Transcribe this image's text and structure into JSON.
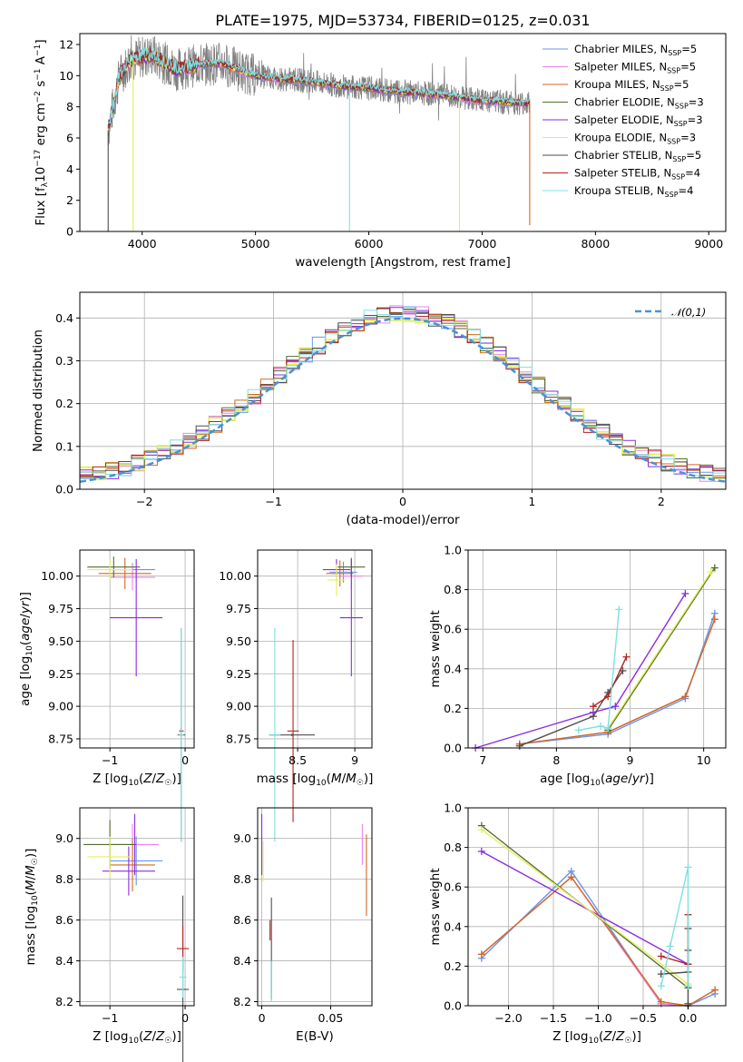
{
  "title": "PLATE=1975, MJD=53734, FIBERID=0125, z=0.031",
  "colors": {
    "chabrier_miles": "#6495ed",
    "salpeter_miles": "#ee82ee",
    "kroupa_miles": "#d2691e",
    "chabrier_elodie": "#556b2f",
    "salpeter_elodie": "#8a2be2",
    "kroupa_elodie": "#e4f05a",
    "chabrier_stelib": "#4f4f4f",
    "salpeter_stelib": "#b22222",
    "kroupa_stelib": "#7fe0e0",
    "data": "#808080",
    "normal": "#4a90d9"
  },
  "chart_data": [
    {
      "id": "spectrum",
      "type": "line",
      "xlabel": "wavelength [Angstrom, rest frame]",
      "ylabel": "Flux [f_λ 10^-17 erg cm^-2 s^-1 A^-1]",
      "xlim": [
        3450,
        9150
      ],
      "ylim": [
        0,
        12.7
      ],
      "xticks": [
        4000,
        5000,
        6000,
        7000,
        8000,
        9000
      ],
      "yticks": [
        0,
        2,
        4,
        6,
        8,
        10,
        12
      ],
      "legend": [
        "Chabrier MILES, N_SSP=5",
        "Salpeter MILES, N_SSP=5",
        "Kroupa MILES, N_SSP=5",
        "Chabrier ELODIE, N_SSP=3",
        "Salpeter ELODIE, N_SSP=3",
        "Kroupa ELODIE, N_SSP=3",
        "Chabrier STELIB, N_SSP=5",
        "Salpeter STELIB, N_SSP=4",
        "Kroupa STELIB, N_SSP=4"
      ],
      "legend_loc": "top-right",
      "continuum": {
        "x": [
          3700,
          3800,
          3900,
          4000,
          4100,
          4200,
          4300,
          4500,
          4700,
          4900,
          5000,
          5200,
          5400,
          5600,
          5800,
          6000,
          6200,
          6400,
          6600,
          6800,
          7000,
          7200,
          7420
        ],
        "y": [
          6.5,
          10.0,
          11.0,
          11.2,
          11.3,
          10.8,
          10.4,
          10.7,
          10.8,
          10.2,
          10.0,
          9.8,
          9.7,
          9.5,
          9.3,
          9.2,
          9.0,
          8.9,
          8.8,
          8.6,
          8.4,
          8.3,
          8.2
        ]
      },
      "model_dropouts": [
        3700,
        3920,
        5830,
        6800,
        7420
      ]
    },
    {
      "id": "residuals",
      "type": "step",
      "xlabel": "(data-model)/error",
      "ylabel": "Normed distribution",
      "xlim": [
        -2.5,
        2.5
      ],
      "ylim": [
        0,
        0.46
      ],
      "xticks": [
        -2,
        -1,
        0,
        1,
        2
      ],
      "yticks": [
        0.0,
        0.1,
        0.2,
        0.3,
        0.4
      ],
      "legend": [
        "𝒩(0,1)"
      ],
      "legend_loc": "top-right",
      "bin_width": 0.1
    },
    {
      "id": "age_vs_Z",
      "type": "errorbar",
      "xlabel": "Z [log10(Z/Z☉)]",
      "ylabel": "age [log10(age/yr)]",
      "xlim": [
        -1.4,
        0.12
      ],
      "ylim": [
        8.68,
        10.2
      ],
      "xticks": [
        -1,
        0
      ],
      "yticks": [
        8.75,
        9.0,
        9.25,
        9.5,
        9.75,
        10.0
      ],
      "points": [
        {
          "s": "chabrier_miles",
          "x": -0.7,
          "xe": 0.3,
          "y": 10.05,
          "ye": 0.05
        },
        {
          "s": "salpeter_miles",
          "x": -0.7,
          "xe": 0.3,
          "y": 9.99,
          "ye": 0.1
        },
        {
          "s": "kroupa_miles",
          "x": -0.8,
          "xe": 0.35,
          "y": 10.02,
          "ye": 0.12
        },
        {
          "s": "chabrier_elodie",
          "x": -0.95,
          "xe": 0.35,
          "y": 10.07,
          "ye": 0.08
        },
        {
          "s": "salpeter_elodie",
          "x": -0.65,
          "xe": 0.35,
          "y": 9.68,
          "ye": 0.45
        },
        {
          "s": "kroupa_elodie",
          "x": -1.0,
          "xe": 0.3,
          "y": 10.05,
          "ye": 0.08
        },
        {
          "s": "chabrier_stelib",
          "x": -0.05,
          "xe": 0.05,
          "y": 8.78,
          "ye": 0.82
        },
        {
          "s": "salpeter_stelib",
          "x": -0.05,
          "xe": 0.03,
          "y": 8.81,
          "ye": 0.03
        },
        {
          "s": "kroupa_stelib",
          "x": -0.05,
          "xe": 0.03,
          "y": 8.78,
          "ye": 0.82
        }
      ]
    },
    {
      "id": "age_vs_mass",
      "type": "errorbar",
      "xlabel": "mass [log10(M/M☉)]",
      "ylabel": "",
      "xlim": [
        8.15,
        9.15
      ],
      "ylim": [
        8.68,
        10.2
      ],
      "xticks": [
        8.5,
        9.0
      ],
      "yticks": [
        8.75,
        9.0,
        9.25,
        9.5,
        9.75,
        10.0
      ],
      "points": [
        {
          "s": "chabrier_miles",
          "x": 8.9,
          "xe": 0.12,
          "y": 10.03,
          "ye": 0.08
        },
        {
          "s": "salpeter_miles",
          "x": 8.97,
          "xe": 0.1,
          "y": 10.0,
          "ye": 0.1
        },
        {
          "s": "kroupa_miles",
          "x": 8.87,
          "xe": 0.12,
          "y": 10.02,
          "ye": 0.1
        },
        {
          "s": "chabrier_elodie",
          "x": 8.97,
          "xe": 0.12,
          "y": 10.07,
          "ye": 0.07
        },
        {
          "s": "salpeter_elodie",
          "x": 8.84,
          "xe": 0.12,
          "y": 10.05,
          "ye": 0.08
        },
        {
          "s": "kroupa_elodie",
          "x": 8.84,
          "xe": 0.08,
          "y": 9.97,
          "ye": 0.12
        },
        {
          "s": "salpeter_elodie",
          "x": 8.97,
          "xe": 0.1,
          "y": 9.68,
          "ye": 0.45
        },
        {
          "s": "chabrier_stelib",
          "x": 8.45,
          "xe": 0.2,
          "y": 8.78,
          "ye": 0.01
        },
        {
          "s": "salpeter_stelib",
          "x": 8.46,
          "xe": 0.05,
          "y": 8.81,
          "ye": 0.7
        },
        {
          "s": "kroupa_stelib",
          "x": 8.3,
          "xe": 0.05,
          "y": 8.78,
          "ye": 0.82
        }
      ]
    },
    {
      "id": "weight_vs_age",
      "type": "line",
      "xlabel": "age [log10(age/yr)]",
      "ylabel": "mass weight",
      "xlim": [
        6.8,
        10.3
      ],
      "ylim": [
        0,
        1.0
      ],
      "xticks": [
        7,
        8,
        9,
        10
      ],
      "yticks": [
        0.0,
        0.2,
        0.4,
        0.6,
        0.8,
        1.0
      ],
      "series": [
        {
          "s": "chabrier_miles",
          "x": [
            7.5,
            8.7,
            9.75,
            10.15
          ],
          "y": [
            0.02,
            0.07,
            0.25,
            0.68
          ]
        },
        {
          "s": "salpeter_miles",
          "x": [
            7.5,
            8.7,
            9.75,
            10.15
          ],
          "y": [
            0.02,
            0.08,
            0.26,
            0.65
          ]
        },
        {
          "s": "kroupa_miles",
          "x": [
            7.5,
            8.7,
            9.75,
            10.15
          ],
          "y": [
            0.02,
            0.08,
            0.26,
            0.65
          ]
        },
        {
          "s": "chabrier_elodie",
          "x": [
            8.7,
            10.15
          ],
          "y": [
            0.09,
            0.91
          ]
        },
        {
          "s": "salpeter_elodie",
          "x": [
            6.9,
            8.5,
            8.8,
            9.75
          ],
          "y": [
            0.0,
            0.18,
            0.21,
            0.78
          ]
        },
        {
          "s": "kroupa_elodie",
          "x": [
            8.7,
            10.1
          ],
          "y": [
            0.1,
            0.89
          ]
        },
        {
          "s": "chabrier_stelib",
          "x": [
            7.5,
            8.5,
            8.7,
            8.9
          ],
          "y": [
            0.01,
            0.16,
            0.28,
            0.39
          ]
        },
        {
          "s": "salpeter_stelib",
          "x": [
            8.5,
            8.7,
            8.95
          ],
          "y": [
            0.21,
            0.26,
            0.46
          ]
        },
        {
          "s": "kroupa_stelib",
          "x": [
            8.3,
            8.6,
            8.7,
            8.85
          ],
          "y": [
            0.09,
            0.11,
            0.1,
            0.7
          ]
        }
      ]
    },
    {
      "id": "mass_vs_Z",
      "type": "errorbar",
      "xlabel": "Z [log10(Z/Z☉)]",
      "ylabel": "mass [log10(M/M☉)]",
      "xlim": [
        -1.4,
        0.12
      ],
      "ylim": [
        8.18,
        9.15
      ],
      "xticks": [
        -1,
        0
      ],
      "yticks": [
        8.2,
        8.4,
        8.6,
        8.8,
        9.0
      ],
      "points": [
        {
          "s": "chabrier_miles",
          "x": -0.65,
          "xe": 0.35,
          "y": 8.89,
          "ye": 0.12
        },
        {
          "s": "salpeter_miles",
          "x": -0.7,
          "xe": 0.35,
          "y": 8.97,
          "ye": 0.1
        },
        {
          "s": "kroupa_miles",
          "x": -0.7,
          "xe": 0.3,
          "y": 8.87,
          "ye": 0.13
        },
        {
          "s": "chabrier_elodie",
          "x": -1.0,
          "xe": 0.35,
          "y": 8.97,
          "ye": 0.12
        },
        {
          "s": "salpeter_elodie",
          "x": -0.75,
          "xe": 0.35,
          "y": 8.84,
          "ye": 0.12
        },
        {
          "s": "kroupa_elodie",
          "x": -1.0,
          "xe": 0.3,
          "y": 8.91,
          "ye": 0.1
        },
        {
          "s": "salpeter_elodie",
          "x": -0.67,
          "xe": 0.02,
          "y": 8.97,
          "ye": 0.15
        },
        {
          "s": "chabrier_stelib",
          "x": -0.03,
          "xe": 0.08,
          "y": 8.26,
          "ye": 0.46
        },
        {
          "s": "salpeter_stelib",
          "x": -0.03,
          "xe": 0.08,
          "y": 8.46,
          "ye": 0.11
        },
        {
          "s": "kroupa_stelib",
          "x": -0.03,
          "xe": 0.05,
          "y": 8.32,
          "ye": 0.1
        }
      ]
    },
    {
      "id": "mass_vs_ebv",
      "type": "errorbar",
      "xlabel": "E(B-V)",
      "ylabel": "",
      "xlim": [
        -0.003,
        0.08
      ],
      "ylim": [
        8.18,
        9.15
      ],
      "xticks": [
        0.0,
        0.05
      ],
      "yticks": [
        8.2,
        8.4,
        8.6,
        8.8,
        9.0
      ],
      "points": [
        {
          "s": "salpeter_miles",
          "x": 0.073,
          "xe": 0.0,
          "y": 8.97,
          "ye": 0.1
        },
        {
          "s": "kroupa_miles",
          "x": 0.076,
          "xe": 0.0,
          "y": 8.82,
          "ye": 0.2
        },
        {
          "s": "salpeter_elodie",
          "x": 0.0,
          "xe": 0.0,
          "y": 8.97,
          "ye": 0.15
        },
        {
          "s": "kroupa_elodie",
          "x": 0.001,
          "xe": 0.0,
          "y": 8.89,
          "ye": 0.1
        },
        {
          "s": "chabrier_stelib",
          "x": 0.007,
          "xe": 0.0,
          "y": 8.46,
          "ye": 0.25
        },
        {
          "s": "salpeter_stelib",
          "x": 0.006,
          "xe": 0.0,
          "y": 8.55,
          "ye": 0.05
        },
        {
          "s": "kroupa_stelib",
          "x": 0.007,
          "xe": 0.0,
          "y": 8.3,
          "ye": 0.1
        }
      ]
    },
    {
      "id": "weight_vs_Z",
      "type": "line",
      "xlabel": "Z [log10(Z/Z☉)]",
      "ylabel": "mass weight",
      "xlim": [
        -2.45,
        0.42
      ],
      "ylim": [
        0,
        1.0
      ],
      "xticks": [
        -2.0,
        -1.5,
        -1.0,
        -0.5,
        0.0
      ],
      "yticks": [
        0.0,
        0.2,
        0.4,
        0.6,
        0.8,
        1.0
      ],
      "series": [
        {
          "s": "chabrier_miles",
          "x": [
            -2.3,
            -1.3,
            -0.3,
            0.0,
            0.3
          ],
          "y": [
            0.24,
            0.68,
            0.01,
            0.0,
            0.06
          ]
        },
        {
          "s": "salpeter_miles",
          "x": [
            -2.3,
            -1.3,
            -0.3,
            0.0,
            0.3
          ],
          "y": [
            0.26,
            0.65,
            0.01,
            0.0,
            0.08
          ]
        },
        {
          "s": "kroupa_miles",
          "x": [
            -2.3,
            -1.3,
            -0.3,
            0.0,
            0.3
          ],
          "y": [
            0.26,
            0.65,
            0.02,
            0.0,
            0.08
          ]
        },
        {
          "s": "chabrier_elodie",
          "x": [
            -2.3,
            0.0
          ],
          "y": [
            0.91,
            0.09
          ]
        },
        {
          "s": "salpeter_elodie",
          "x": [
            -2.3,
            0.0
          ],
          "y": [
            0.78,
            0.21
          ]
        },
        {
          "s": "kroupa_elodie",
          "x": [
            -2.3,
            0.0
          ],
          "y": [
            0.89,
            0.11
          ]
        },
        {
          "s": "chabrier_stelib",
          "x": [
            -0.3,
            0.0,
            0.0,
            0.0,
            0.0
          ],
          "y": [
            0.16,
            0.17,
            0.28,
            0.39,
            0.01
          ]
        },
        {
          "s": "salpeter_stelib",
          "x": [
            -0.3,
            0.0,
            0.0
          ],
          "y": [
            0.25,
            0.21,
            0.46
          ]
        },
        {
          "s": "kroupa_stelib",
          "x": [
            -0.3,
            -0.2,
            0.0,
            0.0
          ],
          "y": [
            0.1,
            0.3,
            0.7,
            0.1
          ]
        }
      ]
    }
  ]
}
